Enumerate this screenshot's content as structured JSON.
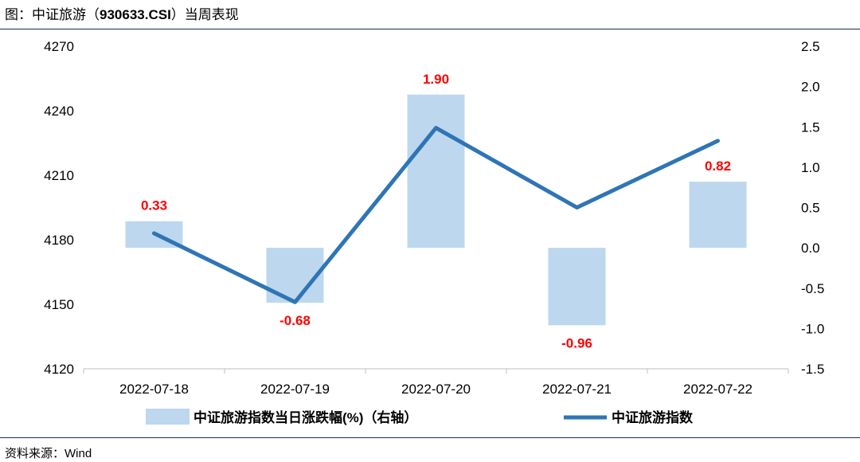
{
  "figure": {
    "title_prefix": "图：中证旅游（",
    "title_code": "930633.CSI",
    "title_suffix": "）当周表现",
    "source": "资料来源：Wind"
  },
  "chart_data": {
    "type": "bar+line",
    "categories": [
      "2022-07-18",
      "2022-07-19",
      "2022-07-20",
      "2022-07-21",
      "2022-07-22"
    ],
    "series": [
      {
        "name": "中证旅游指数当日涨跌幅(%)（右轴）",
        "type": "bar",
        "axis": "right",
        "values": [
          0.33,
          -0.68,
          1.9,
          -0.96,
          0.82
        ],
        "labels": [
          "0.33",
          "-0.68",
          "1.90",
          "-0.96",
          "0.82"
        ],
        "color": "#bdd7ee"
      },
      {
        "name": "中证旅游指数",
        "type": "line",
        "axis": "left",
        "values": [
          4183,
          4151,
          4232,
          4195,
          4226
        ],
        "color": "#2e75b6"
      }
    ],
    "y_left": {
      "min": 4120,
      "max": 4270,
      "ticks": [
        "4270",
        "4240",
        "4210",
        "4180",
        "4150",
        "4120"
      ]
    },
    "y_right": {
      "min": -1.5,
      "max": 2.5,
      "ticks": [
        "2.5",
        "2.0",
        "1.5",
        "1.0",
        "0.5",
        "0.0",
        "-0.5",
        "-1.0",
        "-1.5"
      ]
    },
    "label_color": "#ff0000",
    "grid": false,
    "legend_position": "bottom"
  }
}
